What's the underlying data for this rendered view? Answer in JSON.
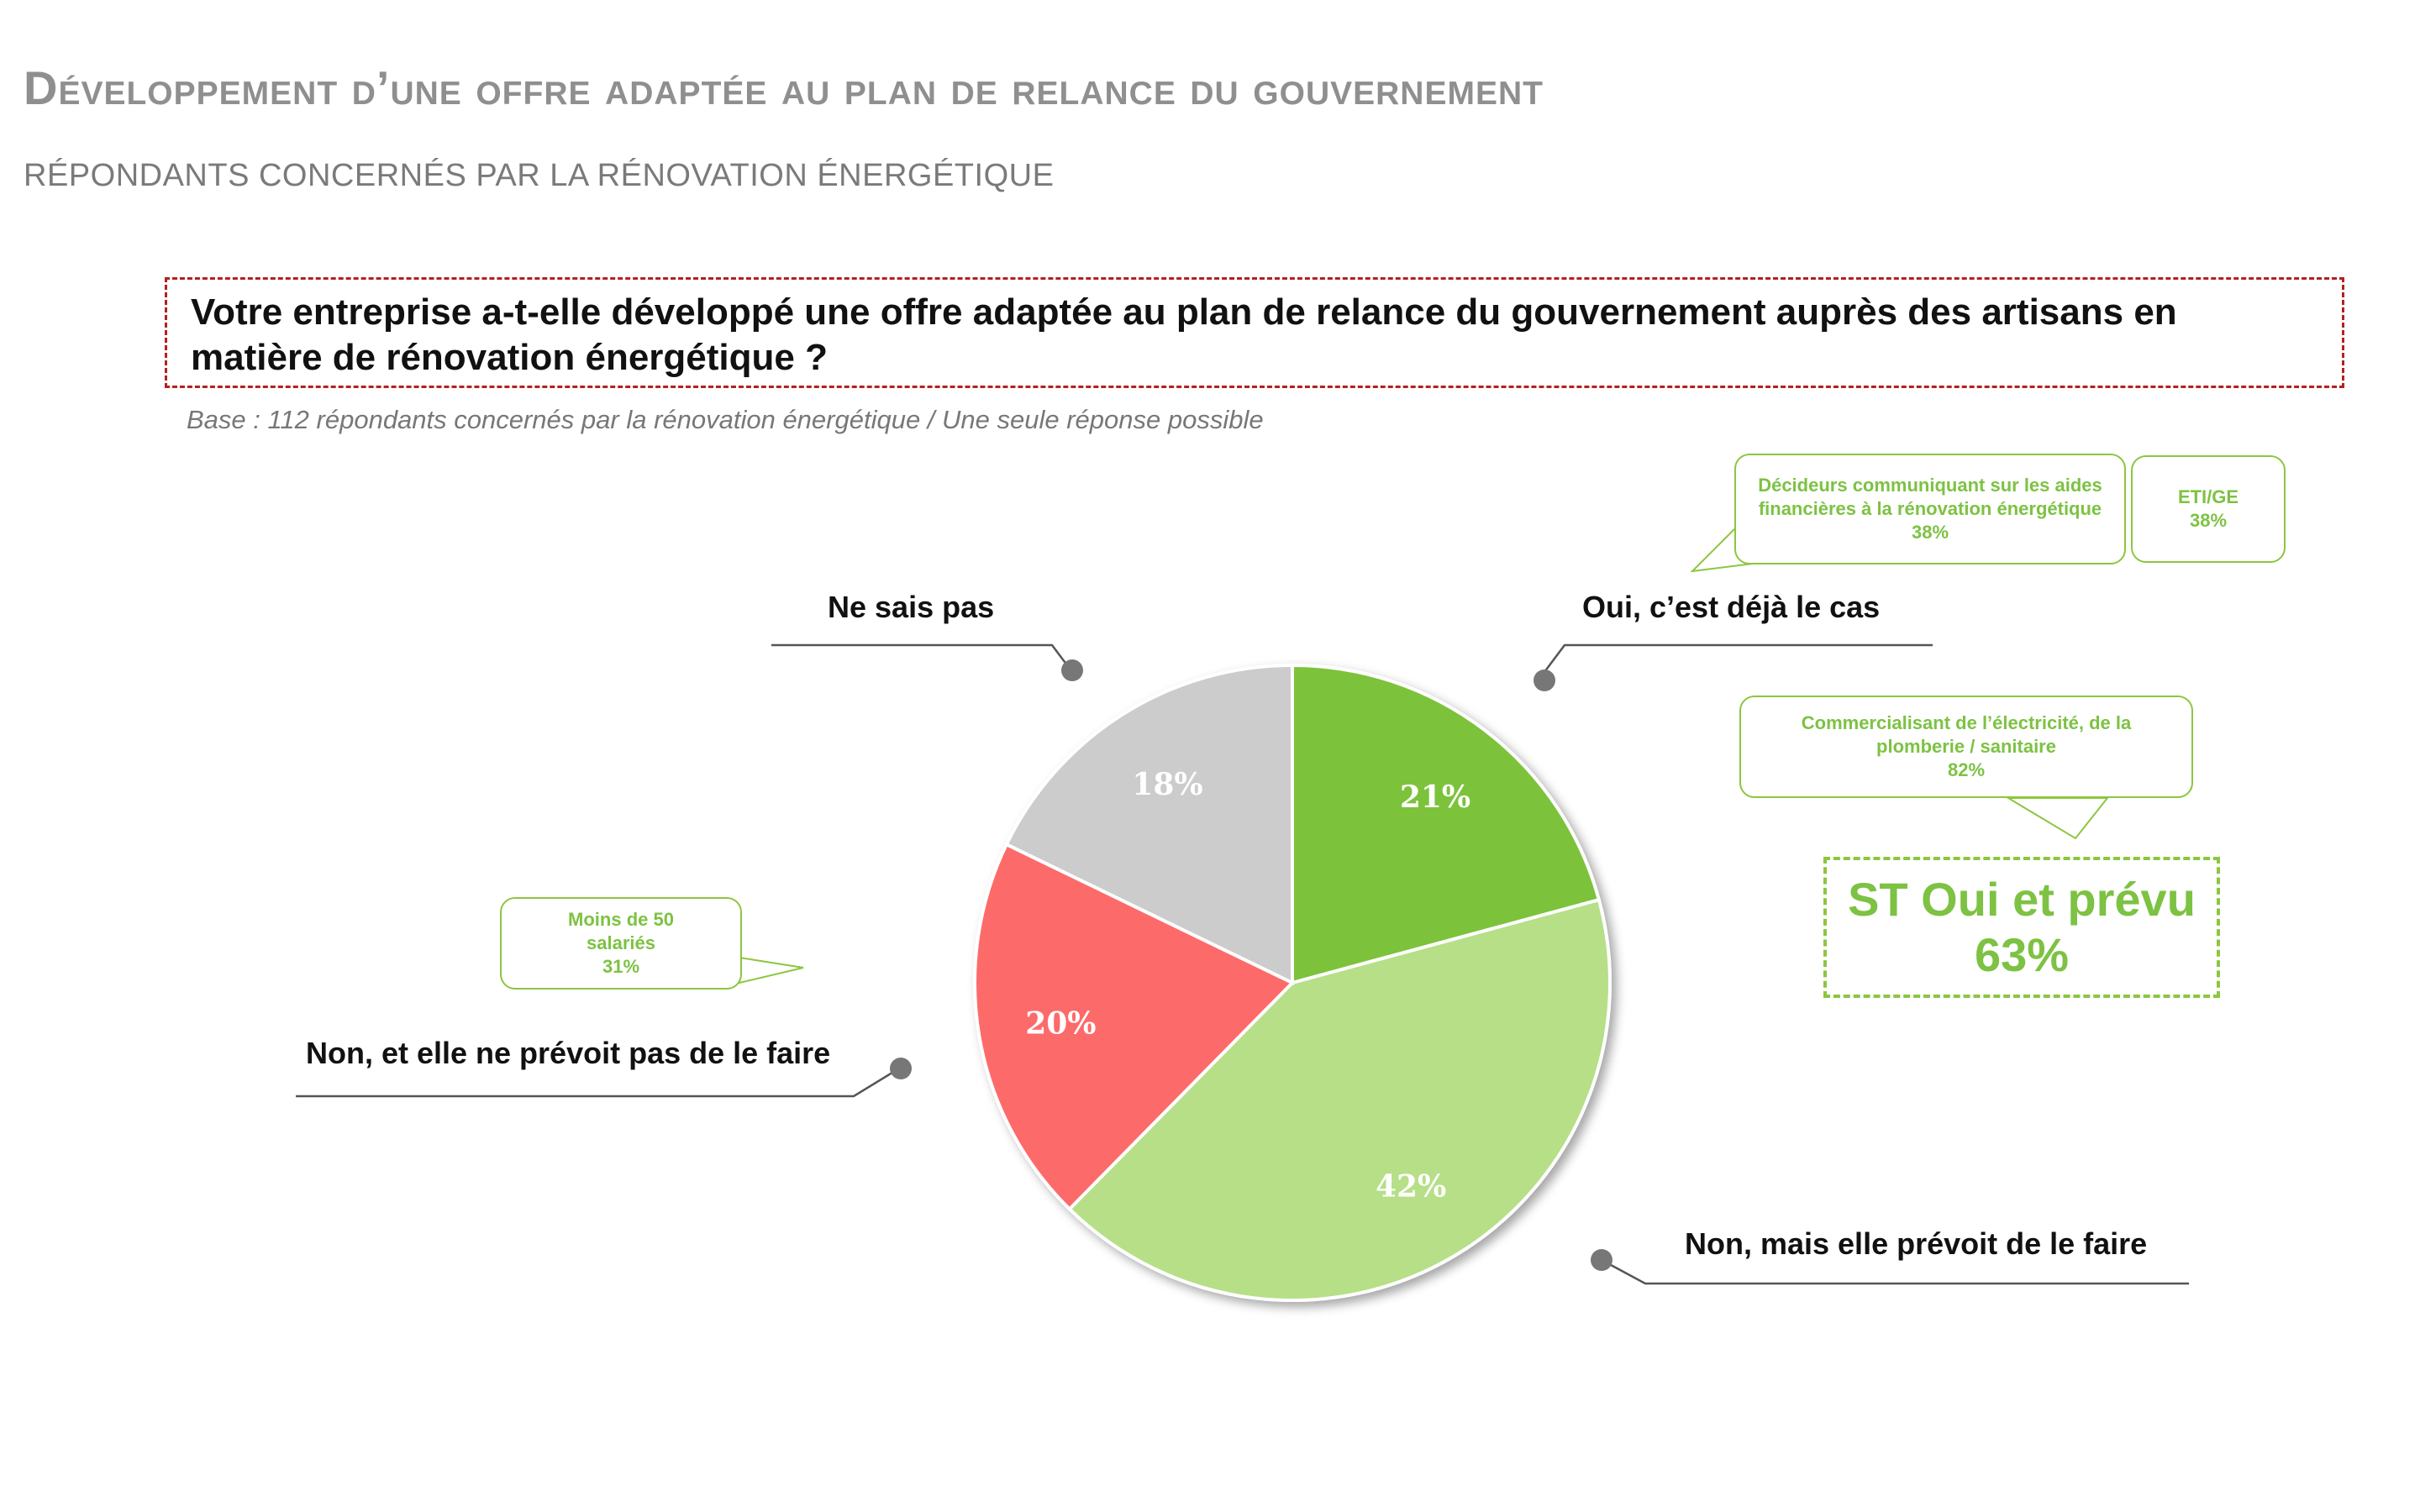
{
  "header": {
    "title": "Développement d’une offre adaptée au plan de relance du gouvernement",
    "subtitle": "RÉPONDANTS CONCERNÉS PAR LA RÉNOVATION ÉNERGÉTIQUE"
  },
  "question": {
    "text": "Votre entreprise a-t-elle développé une offre adaptée au plan de relance du gouvernement auprès des artisans en matière de rénovation énergétique ?",
    "base": "Base : 112 répondants concernés par la rénovation énergétique / Une seule réponse possible"
  },
  "chart_data": {
    "type": "pie",
    "categories": [
      "Oui, c’est déjà le cas",
      "Non, mais elle prévoit de le faire",
      "Non, et elle ne prévoit pas de le faire",
      "Ne sais pas"
    ],
    "values": [
      21,
      42,
      20,
      18
    ],
    "value_labels": [
      "21%",
      "42%",
      "20%",
      "18%"
    ],
    "colors": [
      "#7dc23a",
      "#b6df88",
      "#fd6b6b",
      "#cccccc"
    ],
    "start_angle": "12 o'clock",
    "direction": "clockwise"
  },
  "callouts": {
    "decideurs": {
      "text": "Décideurs communiquant sur les aides financières à la rénovation énergétique",
      "value": "38%"
    },
    "eti": {
      "text": "ETI/GE",
      "value": "38%"
    },
    "commercialisant": {
      "text": "Commercialisant de l’électricité, de la plomberie / sanitaire",
      "value": "82%"
    },
    "moins50": {
      "text": "Moins de 50 salariés",
      "value": "31%"
    }
  },
  "summary": {
    "label": "ST Oui et prévu",
    "value": "63%"
  },
  "colors": {
    "accent_green": "#7dc243",
    "dashed_red": "#b52020",
    "title_grey": "#8f8f8f"
  }
}
